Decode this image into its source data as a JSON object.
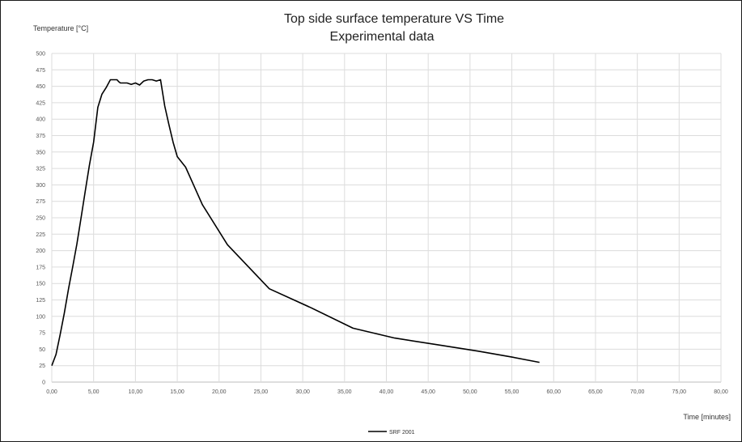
{
  "chart_data": {
    "type": "line",
    "title": "Top side surface temperature VS Time",
    "subtitle": "Experimental data",
    "xlabel": "Time  [minutes]",
    "ylabel": "Temperature [°C]",
    "xlim": [
      0,
      80
    ],
    "ylim": [
      0,
      500
    ],
    "x_ticks": [
      "0,00",
      "5,00",
      "10,00",
      "15,00",
      "20,00",
      "25,00",
      "30,00",
      "35,00",
      "40,00",
      "45,00",
      "50,00",
      "55,00",
      "60,00",
      "65,00",
      "70,00",
      "75,00",
      "80,00"
    ],
    "y_ticks": [
      "0",
      "25",
      "50",
      "75",
      "100",
      "125",
      "150",
      "175",
      "200",
      "225",
      "250",
      "275",
      "300",
      "325",
      "350",
      "375",
      "400",
      "425",
      "450",
      "475",
      "500"
    ],
    "grid": true,
    "legend_position": "bottom",
    "series": [
      {
        "name": "SRF 2001",
        "color": "#000000",
        "x": [
          0,
          0.5,
          1.0,
          1.5,
          2.0,
          2.5,
          3.0,
          3.5,
          4.0,
          4.5,
          5.0,
          5.5,
          6.0,
          6.5,
          7.0,
          7.5,
          7.8,
          8.0,
          8.2,
          8.5,
          9.0,
          9.5,
          10.0,
          10.5,
          11.0,
          11.5,
          12.0,
          12.5,
          13.0,
          13.5,
          14.0,
          14.5,
          15.0,
          16.0,
          18.0,
          21.0,
          26.0,
          31.0,
          36.0,
          41.0,
          46.0,
          51.0,
          55.0,
          58.3
        ],
        "y": [
          25,
          42,
          72,
          105,
          142,
          175,
          210,
          250,
          290,
          330,
          365,
          418,
          438,
          448,
          460,
          460,
          460,
          457,
          455,
          455,
          455,
          453,
          455,
          452,
          458,
          460,
          460,
          458,
          460,
          420,
          392,
          365,
          343,
          327,
          270,
          209,
          142,
          113,
          82,
          67,
          57,
          47,
          38,
          30
        ]
      }
    ]
  }
}
